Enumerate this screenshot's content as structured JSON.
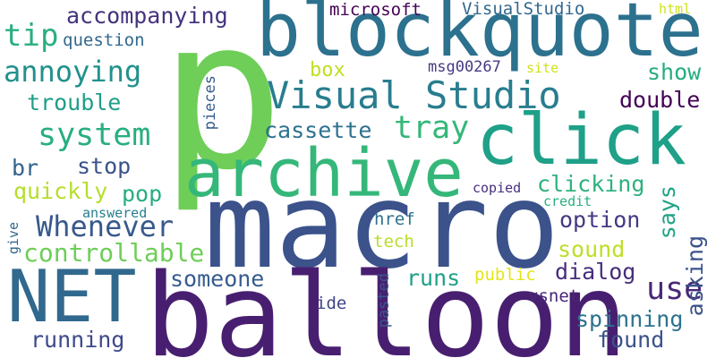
{
  "words": [
    {
      "text": "p",
      "color": "#6ece58"
    },
    {
      "text": "macro",
      "color": "#3b528b"
    },
    {
      "text": "balloon",
      "color": "#481f70"
    },
    {
      "text": "blockquote",
      "color": "#2c718e"
    },
    {
      "text": "archive",
      "color": "#35b779"
    },
    {
      "text": "click",
      "color": "#1fa088"
    },
    {
      "text": "NET",
      "color": "#31688e"
    },
    {
      "text": "Visual Studio",
      "color": "#287d8e"
    },
    {
      "text": "annoying",
      "color": "#21918c"
    },
    {
      "text": "system",
      "color": "#29af7f"
    },
    {
      "text": "tip",
      "color": "#29af7f"
    },
    {
      "text": "accompanying",
      "color": "#46327e"
    },
    {
      "text": "tray",
      "color": "#35b779"
    },
    {
      "text": "Whenever",
      "color": "#38598c"
    },
    {
      "text": "use",
      "color": "#482878"
    },
    {
      "text": "cassette",
      "color": "#2c728e"
    },
    {
      "text": "double",
      "color": "#440154"
    },
    {
      "text": "show",
      "color": "#26ad81"
    },
    {
      "text": "controllable",
      "color": "#6ece58"
    },
    {
      "text": "running",
      "color": "#3e4a89"
    },
    {
      "text": "spinning",
      "color": "#2c728e"
    },
    {
      "text": "found",
      "color": "#3b528b"
    },
    {
      "text": "someone",
      "color": "#365c8d"
    },
    {
      "text": "dialog",
      "color": "#472d7b"
    },
    {
      "text": "trouble",
      "color": "#1f9e89"
    },
    {
      "text": "question",
      "color": "#31688e"
    },
    {
      "text": "quickly",
      "color": "#b5de2b"
    },
    {
      "text": "clicking",
      "color": "#2db27d"
    },
    {
      "text": "option",
      "color": "#443983"
    },
    {
      "text": "sound",
      "color": "#bddf26"
    },
    {
      "text": "runs",
      "color": "#1fa088"
    },
    {
      "text": "asking",
      "color": "#3b528b"
    },
    {
      "text": "says",
      "color": "#20a486"
    },
    {
      "text": "stop",
      "color": "#3b528b"
    },
    {
      "text": "pop",
      "color": "#27ad81"
    },
    {
      "text": "br",
      "color": "#33638d"
    },
    {
      "text": "box",
      "color": "#c2df23"
    },
    {
      "text": "microsoft",
      "color": "#440154"
    },
    {
      "text": "VisualStudio",
      "color": "#31688e"
    },
    {
      "text": "html",
      "color": "#d2e21b"
    },
    {
      "text": "msg00267",
      "color": "#443983"
    },
    {
      "text": "site",
      "color": "#d0e11c"
    },
    {
      "text": "pieces",
      "color": "#365d8d"
    },
    {
      "text": "href",
      "color": "#2c718e"
    },
    {
      "text": "tech",
      "color": "#b8de29"
    },
    {
      "text": "copied",
      "color": "#472f7d"
    },
    {
      "text": "credit",
      "color": "#2ab07f"
    },
    {
      "text": "answered",
      "color": "#277f8e"
    },
    {
      "text": "give",
      "color": "#31688e"
    },
    {
      "text": "public",
      "color": "#e5e419"
    },
    {
      "text": "ide",
      "color": "#414487"
    },
    {
      "text": "pasted",
      "color": "#39568c"
    },
    {
      "text": "vsnet",
      "color": "#482677"
    }
  ]
}
